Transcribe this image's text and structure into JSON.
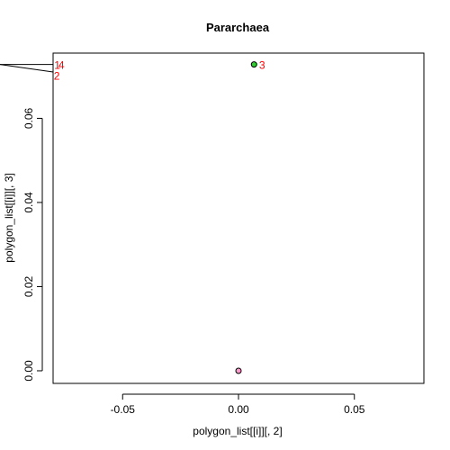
{
  "chart_data": {
    "type": "scatter",
    "title": "Pararchaea",
    "xlabel": "polygon_list[[i]][, 2]",
    "ylabel": "polygon_list[[i]][, 3]",
    "xlim": [
      -0.08,
      0.08
    ],
    "ylim": [
      -0.003,
      0.0755
    ],
    "xticks": [
      -0.05,
      0.0,
      0.05
    ],
    "xtick_labels": [
      "-0.05",
      "0.00",
      "0.05"
    ],
    "yticks": [
      0.0,
      0.02,
      0.04,
      0.06
    ],
    "ytick_labels": [
      "0.00",
      "0.02",
      "0.04",
      "0.06"
    ],
    "points": [
      {
        "x": 0.0,
        "y": 0.0,
        "fill": "#ff99cc",
        "stroke": "#000000"
      },
      {
        "x": 0.0067,
        "y": 0.0728,
        "fill": "#33cc33",
        "stroke": "#000000"
      }
    ],
    "point_labels": [
      {
        "text": "1",
        "x": -0.0795,
        "y": 0.0726
      },
      {
        "text": "4",
        "x": -0.0777,
        "y": 0.0726
      },
      {
        "text": "2",
        "x": -0.0797,
        "y": 0.07
      },
      {
        "text": "3",
        "x": 0.0089,
        "y": 0.0726
      }
    ],
    "segments": [
      {
        "x1": -0.12,
        "y1": 0.0728,
        "x2": -0.08,
        "y2": 0.0728
      },
      {
        "x1": -0.12,
        "y1": 0.0728,
        "x2": -0.08,
        "y2": 0.071
      }
    ],
    "label_color": "#ff0000",
    "grid": false,
    "legend": "none"
  }
}
